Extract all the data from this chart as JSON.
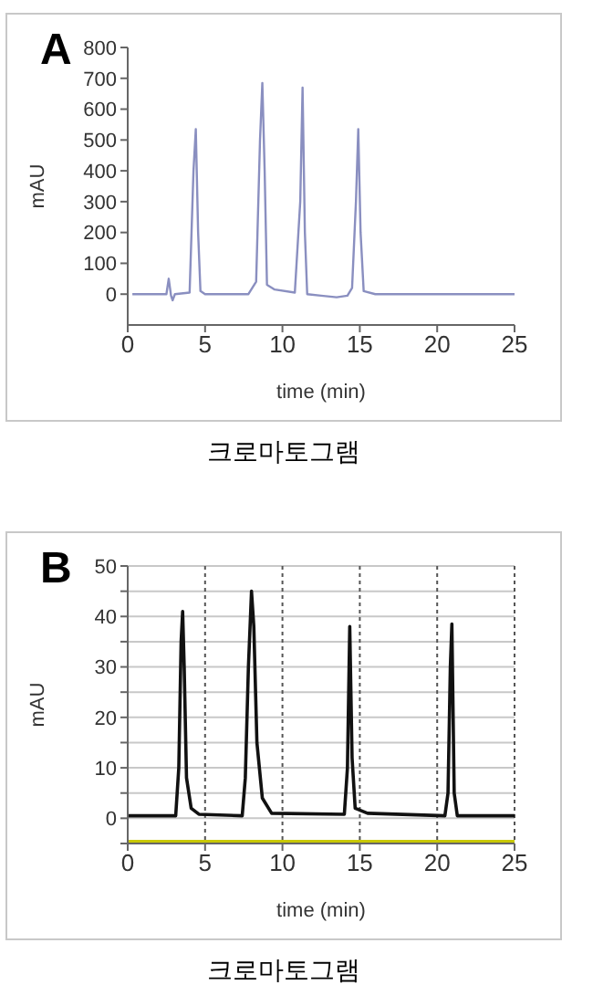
{
  "chart_data": [
    {
      "type": "line",
      "title": "A",
      "xlabel": "time (min)",
      "ylabel": "mAU",
      "annotations": [
        "크로마토그램"
      ],
      "xlim": [
        0,
        25
      ],
      "xticks": [
        0,
        5,
        10,
        15,
        20,
        25
      ],
      "ylim": [
        -100,
        800
      ],
      "yticks": [
        0,
        100,
        200,
        300,
        400,
        500,
        600,
        700,
        800
      ],
      "grid": false,
      "legend": false,
      "marker": "none",
      "series": [
        {
          "color": "#8a8fc0",
          "x": [
            0.3,
            2.5,
            2.65,
            2.8,
            2.9,
            3.05,
            4.0,
            4.25,
            4.4,
            4.55,
            4.7,
            5,
            7.8,
            8.3,
            8.55,
            8.7,
            8.85,
            9.0,
            9.5,
            10.8,
            11.15,
            11.3,
            11.45,
            11.6,
            12.5,
            13.5,
            14.2,
            14.5,
            14.75,
            14.9,
            15.05,
            15.25,
            16,
            25
          ],
          "values": [
            0,
            0,
            50,
            -5,
            -20,
            0,
            5,
            400,
            535,
            200,
            10,
            0,
            0,
            40,
            500,
            685,
            400,
            30,
            15,
            5,
            300,
            670,
            200,
            0,
            -5,
            -10,
            -5,
            20,
            300,
            535,
            200,
            10,
            0,
            0
          ]
        }
      ]
    },
    {
      "type": "line",
      "title": "B",
      "xlabel": "time (min)",
      "ylabel": "mAU",
      "annotations": [
        "크로마토그램"
      ],
      "xlim": [
        0,
        25
      ],
      "xticks": [
        0,
        5,
        10,
        15,
        20,
        25
      ],
      "ylim": [
        -5,
        50
      ],
      "yticks": [
        {
          "value": -5,
          "label": null
        },
        0,
        {
          "value": 5,
          "label": null
        },
        10,
        {
          "value": 15,
          "label": null
        },
        20,
        {
          "value": 25,
          "label": null
        },
        30,
        {
          "value": 35,
          "label": null
        },
        40,
        {
          "value": 45,
          "label": null
        },
        50
      ],
      "grid": true,
      "legend": false,
      "marker": "none",
      "series": [
        {
          "color": "#111111",
          "x": [
            0,
            3.1,
            3.3,
            3.45,
            3.55,
            3.65,
            3.8,
            4.1,
            4.6,
            7.4,
            7.6,
            7.8,
            8.0,
            8.15,
            8.35,
            8.7,
            9.3,
            14.0,
            14.2,
            14.35,
            14.5,
            14.7,
            15.5,
            20.5,
            20.7,
            20.85,
            20.95,
            21.1,
            21.3,
            25
          ],
          "values": [
            0.5,
            0.5,
            10,
            35,
            41,
            30,
            8,
            2,
            0.8,
            0.5,
            8,
            30,
            45,
            38,
            15,
            4,
            1,
            0.8,
            10,
            38,
            12,
            2,
            1,
            0.5,
            5,
            30,
            38.5,
            5,
            0.5,
            0.5
          ]
        },
        {
          "color": "#c8c800",
          "x": [
            0,
            25
          ],
          "values": [
            -5,
            -5
          ]
        }
      ]
    }
  ]
}
